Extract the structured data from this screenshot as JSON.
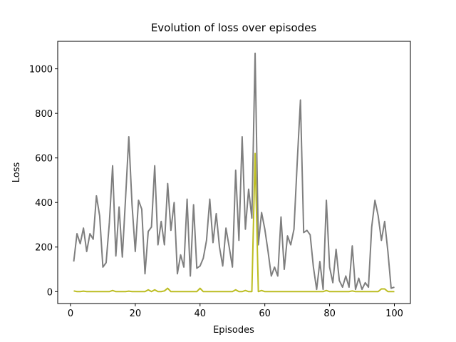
{
  "chart_data": {
    "type": "line",
    "title": "Evolution of loss over episodes",
    "x_label": "Episodes",
    "y_label": "Loss",
    "x": [
      1,
      2,
      3,
      4,
      5,
      6,
      7,
      8,
      9,
      10,
      11,
      12,
      13,
      14,
      15,
      16,
      17,
      18,
      19,
      20,
      21,
      22,
      23,
      24,
      25,
      26,
      27,
      28,
      29,
      30,
      31,
      32,
      33,
      34,
      35,
      36,
      37,
      38,
      39,
      40,
      41,
      42,
      43,
      44,
      45,
      46,
      47,
      48,
      49,
      50,
      51,
      52,
      53,
      54,
      55,
      56,
      57,
      58,
      59,
      60,
      61,
      62,
      63,
      64,
      65,
      66,
      67,
      68,
      69,
      70,
      71,
      72,
      73,
      74,
      75,
      76,
      77,
      78,
      79,
      80,
      81,
      82,
      83,
      84,
      85,
      86,
      87,
      88,
      89,
      90,
      91,
      92,
      93,
      94,
      95,
      96,
      97,
      98,
      99,
      100
    ],
    "series": [
      {
        "color": "#7f7f7f",
        "values": [
          135,
          260,
          215,
          285,
          180,
          260,
          235,
          430,
          340,
          110,
          130,
          310,
          565,
          160,
          380,
          155,
          420,
          695,
          390,
          180,
          410,
          370,
          80,
          270,
          290,
          565,
          210,
          315,
          210,
          485,
          275,
          400,
          80,
          165,
          110,
          415,
          70,
          390,
          105,
          115,
          150,
          230,
          415,
          220,
          350,
          200,
          115,
          285,
          200,
          110,
          545,
          230,
          695,
          280,
          460,
          330,
          1070,
          210,
          355,
          280,
          180,
          70,
          110,
          70,
          335,
          100,
          250,
          210,
          280,
          580,
          860,
          265,
          275,
          255,
          110,
          10,
          135,
          10,
          410,
          110,
          40,
          190,
          50,
          20,
          70,
          20,
          205,
          10,
          60,
          10,
          40,
          20,
          290,
          410,
          340,
          230,
          315,
          180,
          15,
          20
        ]
      },
      {
        "color": "#bcbd22",
        "values": [
          3,
          0,
          0,
          2,
          0,
          0,
          0,
          0,
          0,
          0,
          0,
          0,
          5,
          0,
          0,
          0,
          0,
          2,
          0,
          0,
          0,
          0,
          0,
          8,
          0,
          8,
          0,
          0,
          3,
          15,
          0,
          0,
          0,
          0,
          0,
          0,
          0,
          0,
          0,
          15,
          0,
          0,
          0,
          0,
          0,
          0,
          0,
          0,
          0,
          0,
          8,
          0,
          0,
          5,
          0,
          0,
          620,
          0,
          5,
          0,
          0,
          0,
          0,
          0,
          0,
          0,
          0,
          0,
          0,
          0,
          0,
          0,
          0,
          0,
          0,
          0,
          0,
          0,
          5,
          0,
          0,
          0,
          0,
          0,
          0,
          0,
          3,
          0,
          0,
          0,
          0,
          0,
          0,
          0,
          0,
          12,
          12,
          0,
          0,
          0
        ]
      }
    ],
    "xlim": [
      -3.95,
      104.95
    ],
    "xticks": [
      0,
      20,
      40,
      60,
      80,
      100
    ],
    "ylim": [
      -53.5,
      1123.5
    ],
    "yticks": [
      0,
      200,
      400,
      600,
      800,
      1000
    ]
  }
}
